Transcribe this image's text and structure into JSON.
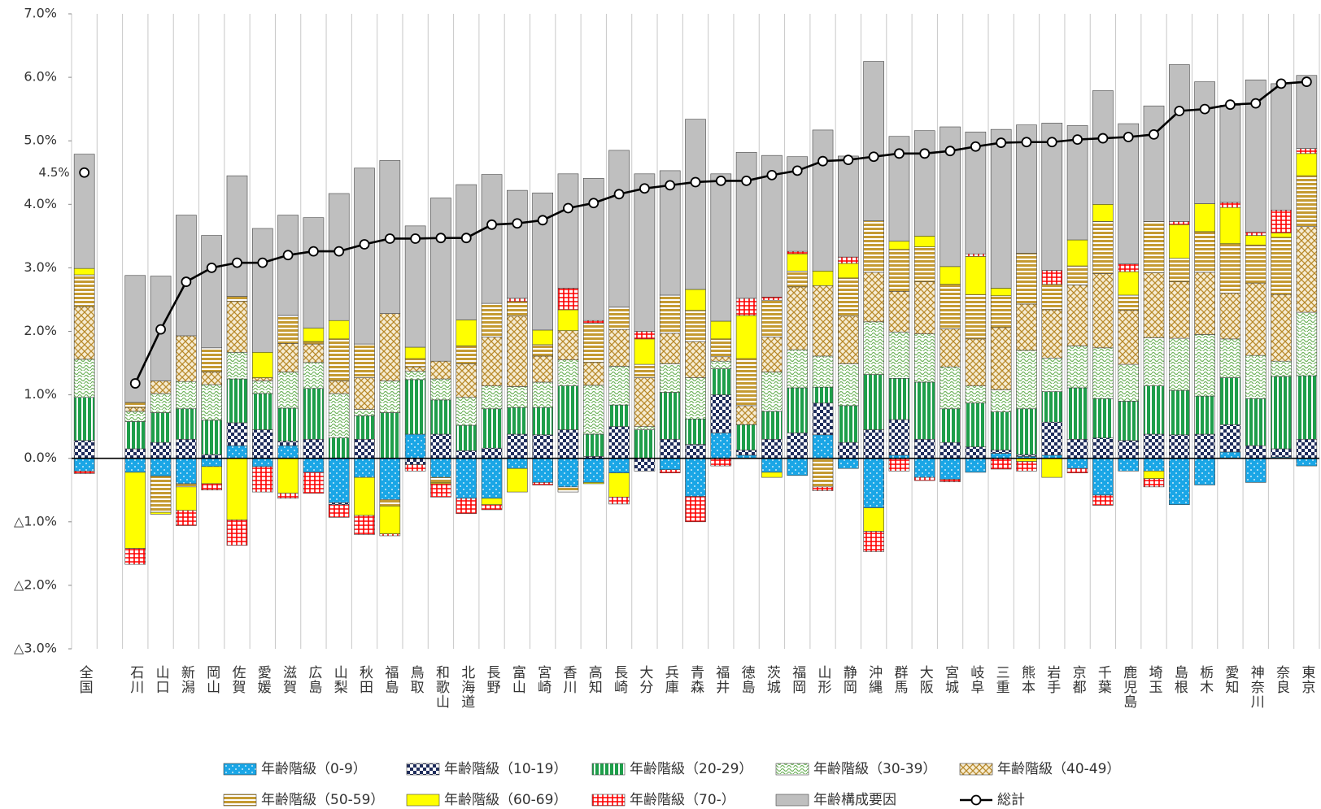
{
  "chart_data": {
    "type": "bar",
    "stacked": true,
    "categories": [
      "全国",
      null,
      "石川",
      "山口",
      "新潟",
      "岡山",
      "佐賀",
      "愛媛",
      "滋賀",
      "広島",
      "山梨",
      "秋田",
      "福島",
      "鳥取",
      "和歌山",
      "北海道",
      "長野",
      "富山",
      "宮崎",
      "香川",
      "高知",
      "長崎",
      "大分",
      "兵庫",
      "青森",
      "福井",
      "徳島",
      "茨城",
      "福岡",
      "山形",
      "静岡",
      "沖縄",
      "群馬",
      "大阪",
      "宮城",
      "岐阜",
      "三重",
      "熊本",
      "岩手",
      "京都",
      "千葉",
      "鹿児島",
      "埼玉",
      "島根",
      "栃木",
      "愛知",
      "神奈川",
      "奈良",
      "東京"
    ],
    "ylim": [
      -3,
      7
    ],
    "yticks": [
      {
        "value": -3,
        "label": "△3.0%"
      },
      {
        "value": -2,
        "label": "△2.0%"
      },
      {
        "value": -1,
        "label": "△1.0%"
      },
      {
        "value": 0,
        "label": "0.0%"
      },
      {
        "value": 1,
        "label": "1.0%"
      },
      {
        "value": 2,
        "label": "2.0%"
      },
      {
        "value": 3,
        "label": "3.0%"
      },
      {
        "value": 4,
        "label": "4.0%"
      },
      {
        "value": 5,
        "label": "5.0%"
      },
      {
        "value": 6,
        "label": "6.0%"
      },
      {
        "value": 7,
        "label": "7.0%"
      }
    ],
    "series": [
      {
        "name": "年齢階級（0-9）",
        "color": "#1aa6e6",
        "values": [
          -0.2,
          null,
          -0.22,
          -0.28,
          -0.4,
          -0.13,
          0.2,
          -0.13,
          0.2,
          -0.22,
          -0.7,
          -0.3,
          -0.65,
          0.38,
          -0.3,
          -0.63,
          -0.63,
          -0.16,
          -0.38,
          -0.45,
          -0.38,
          -0.23,
          0,
          -0.18,
          -0.6,
          0.4,
          0.05,
          -0.22,
          -0.27,
          0.37,
          -0.16,
          -0.78,
          0.05,
          -0.3,
          -0.33,
          -0.22,
          0.08,
          0.03,
          0.05,
          -0.16,
          -0.58,
          -0.2,
          -0.2,
          -0.73,
          -0.42,
          0.1,
          -0.38,
          0.02,
          -0.12
        ]
      },
      {
        "name": "年齢階級（10-19）",
        "color": "#1f2d5c",
        "values": [
          0.28,
          null,
          0.15,
          0.25,
          0.3,
          0.06,
          0.36,
          0.45,
          0.07,
          0.3,
          -0.03,
          0.3,
          0,
          -0.1,
          0.38,
          0.12,
          0.16,
          0.38,
          0.37,
          0.45,
          0.03,
          0.5,
          -0.2,
          0.3,
          0.22,
          0.6,
          0.08,
          0.3,
          0.4,
          0.5,
          0.25,
          0.45,
          0.56,
          0.3,
          0.25,
          0.18,
          0.05,
          0.03,
          0.52,
          0.3,
          0.32,
          0.28,
          0.38,
          0.37,
          0.38,
          0.43,
          0.2,
          0.13,
          0.3
        ]
      },
      {
        "name": "年齢階級（20-29）",
        "color": "#1e9e4a",
        "values": [
          0.68,
          null,
          0.43,
          0.47,
          0.48,
          0.54,
          0.69,
          0.57,
          0.52,
          0.8,
          0.32,
          0.37,
          0.72,
          0.86,
          0.54,
          0.4,
          0.62,
          0.42,
          0.43,
          0.69,
          0.35,
          0.34,
          0.45,
          0.74,
          0.4,
          0.41,
          0.4,
          0.44,
          0.71,
          0.25,
          0.58,
          0.87,
          0.65,
          0.9,
          0.53,
          0.69,
          0.6,
          0.72,
          0.48,
          0.81,
          0.62,
          0.62,
          0.76,
          0.7,
          0.6,
          0.74,
          0.74,
          1.14,
          1.0
        ]
      },
      {
        "name": "年齢階級（30-39）",
        "color": "#6fb35c",
        "values": [
          0.6,
          null,
          0.16,
          0.3,
          0.43,
          0.56,
          0.42,
          0.2,
          0.57,
          0.41,
          0.7,
          0.1,
          0.5,
          0.13,
          0.33,
          0.44,
          0.36,
          0.33,
          0.4,
          0.41,
          0.77,
          0.61,
          0.05,
          0.45,
          0.65,
          0.12,
          0,
          0.62,
          0.6,
          0.49,
          0.66,
          0.83,
          0.73,
          0.76,
          0.66,
          0.27,
          0.35,
          0.92,
          0.53,
          0.66,
          0.8,
          0.58,
          0.76,
          0.82,
          0.97,
          0.61,
          0.68,
          0.24,
          1.0
        ]
      },
      {
        "name": "年齢階級（40-49）",
        "color": "#b8892a",
        "values": [
          0.83,
          null,
          0.06,
          0.2,
          0.72,
          0.2,
          0.8,
          0.05,
          0.45,
          0.29,
          0.2,
          0.5,
          1.06,
          0.07,
          0.28,
          0.53,
          0.77,
          1.11,
          0.41,
          0.46,
          0.36,
          0.58,
          0.77,
          0.48,
          0.57,
          0.07,
          0.3,
          0.55,
          0.99,
          1.11,
          0.75,
          0.78,
          0.64,
          0.82,
          0.6,
          0.74,
          0.98,
          0.73,
          0.76,
          0.96,
          1.17,
          0.85,
          1.02,
          0.89,
          0.98,
          0.72,
          1.14,
          1.05,
          1.35
        ]
      },
      {
        "name": "年齢階級（50-59）",
        "color": "#c49a32",
        "values": [
          0.5,
          null,
          0.08,
          -0.57,
          -0.05,
          0.38,
          0.08,
          0,
          0.44,
          0.04,
          0.66,
          0.53,
          -0.1,
          0.13,
          -0.08,
          0.28,
          0.53,
          0.23,
          0.18,
          -0.08,
          0.62,
          0.35,
          0.21,
          0.6,
          0.49,
          0.28,
          0.74,
          0.58,
          0.25,
          -0.45,
          0.6,
          0.81,
          0.66,
          0.55,
          0.7,
          0.7,
          0.5,
          0.8,
          0.4,
          0.3,
          0.82,
          0.24,
          0.81,
          0.37,
          0.64,
          0.78,
          0.6,
          0.9,
          0.8
        ]
      },
      {
        "name": "年齢階級（60-69）",
        "color": "#ffff00",
        "values": [
          0.1,
          null,
          -1.2,
          -0.03,
          -0.37,
          -0.27,
          -0.97,
          0.4,
          -0.55,
          0.21,
          0.29,
          -0.6,
          -0.44,
          0.18,
          -0.02,
          0.41,
          -0.1,
          -0.37,
          0.23,
          0.33,
          -0.02,
          -0.38,
          0.4,
          0,
          0.33,
          0.28,
          0.68,
          -0.08,
          0.27,
          0.23,
          0.23,
          -0.37,
          0.13,
          0.17,
          0.28,
          0.6,
          0.12,
          -0.05,
          -0.3,
          0.41,
          0.27,
          0.37,
          -0.12,
          0.53,
          0.44,
          0.57,
          0.15,
          0.07,
          0.35
        ]
      },
      {
        "name": "年齢階級（70-）",
        "color": "#ff0000",
        "values": [
          -0.04,
          null,
          -0.25,
          0,
          -0.24,
          -0.1,
          -0.4,
          -0.4,
          -0.08,
          -0.33,
          -0.2,
          -0.3,
          -0.03,
          -0.1,
          -0.21,
          -0.24,
          -0.08,
          0.05,
          -0.04,
          0.34,
          0.04,
          -0.11,
          0.12,
          -0.05,
          -0.4,
          -0.12,
          0.27,
          0.05,
          0.04,
          -0.06,
          0.1,
          -0.32,
          -0.2,
          -0.05,
          -0.04,
          0.04,
          -0.17,
          -0.15,
          0.22,
          -0.07,
          -0.16,
          0.12,
          -0.13,
          0.05,
          0,
          0.08,
          0.05,
          0.36,
          0.08
        ]
      },
      {
        "name": "年齢構成要因",
        "color": "#bfbfbf",
        "values": [
          1.8,
          null,
          2.0,
          1.65,
          1.9,
          1.77,
          1.9,
          1.95,
          1.58,
          1.74,
          2.0,
          2.77,
          2.41,
          1.91,
          2.57,
          2.13,
          2.03,
          1.7,
          2.16,
          1.8,
          2.24,
          2.47,
          2.48,
          1.96,
          2.68,
          2.32,
          2.3,
          2.23,
          1.49,
          2.22,
          1.59,
          2.51,
          1.65,
          1.66,
          2.2,
          1.92,
          2.5,
          2.02,
          2.32,
          1.8,
          1.79,
          2.21,
          1.82,
          2.47,
          1.92,
          1.53,
          2.4,
          1.99,
          1.15
        ]
      },
      {
        "name": "総計",
        "type": "line",
        "color": "#000000",
        "values": [
          4.5,
          null,
          1.18,
          2.03,
          2.78,
          3.0,
          3.08,
          3.08,
          3.2,
          3.26,
          3.26,
          3.37,
          3.46,
          3.46,
          3.47,
          3.47,
          3.68,
          3.7,
          3.75,
          3.94,
          4.02,
          4.16,
          4.25,
          4.3,
          4.35,
          4.37,
          4.37,
          4.46,
          4.53,
          4.68,
          4.7,
          4.75,
          4.8,
          4.8,
          4.84,
          4.91,
          4.97,
          4.98,
          4.98,
          5.02,
          5.04,
          5.06,
          5.1,
          5.47,
          5.5,
          5.57,
          5.59,
          5.9,
          5.93
        ],
        "value_labels": [
          "4.5%",
          null,
          null,
          null,
          null,
          null,
          null,
          null,
          null,
          null,
          null,
          null,
          null,
          null,
          null,
          null,
          null,
          null,
          null,
          null,
          null,
          null,
          null,
          null,
          null,
          null,
          null,
          null,
          null,
          null,
          null,
          null,
          null,
          null,
          null,
          null,
          null,
          null,
          null,
          null,
          null,
          null,
          null,
          null,
          null,
          null,
          null,
          null,
          null
        ]
      }
    ]
  }
}
